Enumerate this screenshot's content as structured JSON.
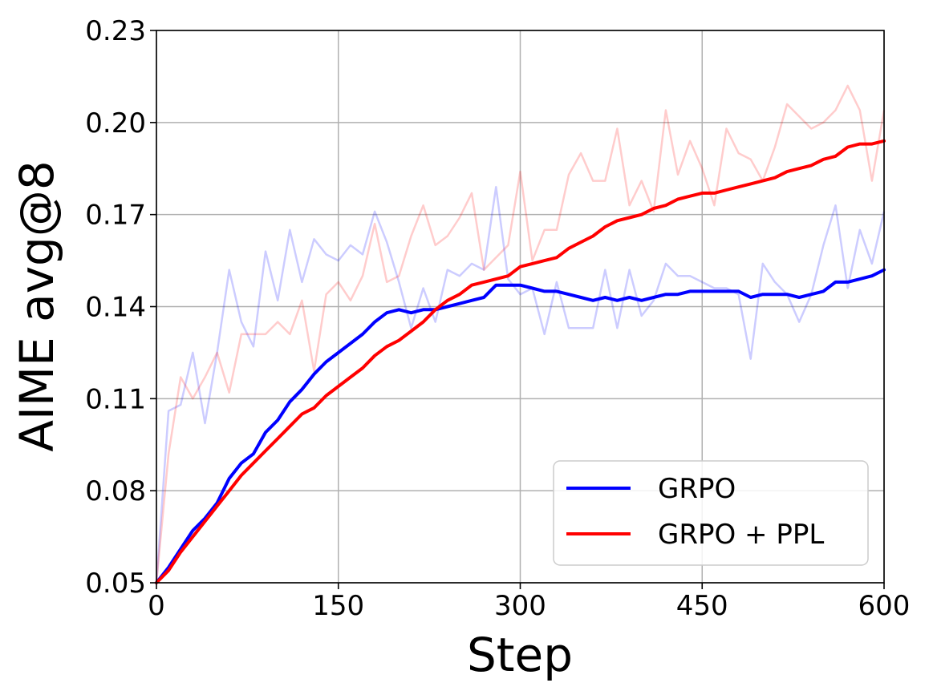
{
  "chart_data": {
    "type": "line",
    "xlabel": "Step",
    "ylabel": "AIME avg@8",
    "xlim": [
      0,
      600
    ],
    "ylim": [
      0.05,
      0.23
    ],
    "xticks": [
      0,
      150,
      300,
      450,
      600
    ],
    "xtick_labels": [
      "0",
      "150",
      "300",
      "450",
      "600"
    ],
    "yticks": [
      0.05,
      0.08,
      0.11,
      0.14,
      0.17,
      0.2,
      0.23
    ],
    "ytick_labels": [
      "0.05",
      "0.08",
      "0.11",
      "0.14",
      "0.17",
      "0.20",
      "0.23"
    ],
    "grid": true,
    "legend": "bottom-right",
    "x": [
      0,
      10,
      20,
      30,
      40,
      50,
      60,
      70,
      80,
      90,
      100,
      110,
      120,
      130,
      140,
      150,
      160,
      170,
      180,
      190,
      200,
      210,
      220,
      230,
      240,
      250,
      260,
      270,
      280,
      290,
      300,
      310,
      320,
      330,
      340,
      350,
      360,
      370,
      380,
      390,
      400,
      410,
      420,
      430,
      440,
      450,
      460,
      470,
      480,
      490,
      500,
      510,
      520,
      530,
      540,
      550,
      560,
      570,
      580,
      590,
      600
    ],
    "series": [
      {
        "name": "GRPO",
        "color": "#0000ff",
        "values": [
          0.05,
          0.055,
          0.061,
          0.067,
          0.071,
          0.076,
          0.084,
          0.089,
          0.092,
          0.099,
          0.103,
          0.109,
          0.113,
          0.118,
          0.122,
          0.125,
          0.128,
          0.131,
          0.135,
          0.138,
          0.139,
          0.138,
          0.139,
          0.139,
          0.14,
          0.141,
          0.142,
          0.143,
          0.147,
          0.147,
          0.147,
          0.146,
          0.145,
          0.145,
          0.144,
          0.143,
          0.142,
          0.143,
          0.142,
          0.143,
          0.142,
          0.143,
          0.144,
          0.144,
          0.145,
          0.145,
          0.145,
          0.145,
          0.145,
          0.143,
          0.144,
          0.144,
          0.144,
          0.143,
          0.144,
          0.145,
          0.148,
          0.148,
          0.149,
          0.15,
          0.152
        ]
      },
      {
        "name": "GRPO + PPL",
        "color": "#ff0000",
        "values": [
          0.05,
          0.054,
          0.06,
          0.065,
          0.07,
          0.075,
          0.08,
          0.085,
          0.089,
          0.093,
          0.097,
          0.101,
          0.105,
          0.107,
          0.111,
          0.114,
          0.117,
          0.12,
          0.124,
          0.127,
          0.129,
          0.132,
          0.135,
          0.139,
          0.142,
          0.144,
          0.147,
          0.148,
          0.149,
          0.15,
          0.153,
          0.154,
          0.155,
          0.156,
          0.159,
          0.161,
          0.163,
          0.166,
          0.168,
          0.169,
          0.17,
          0.172,
          0.173,
          0.175,
          0.176,
          0.177,
          0.177,
          0.178,
          0.179,
          0.18,
          0.181,
          0.182,
          0.184,
          0.185,
          0.186,
          0.188,
          0.189,
          0.192,
          0.193,
          0.193,
          0.194
        ]
      }
    ],
    "raw_series": [
      {
        "color": "#0000ff",
        "values": [
          0.05,
          0.106,
          0.108,
          0.125,
          0.102,
          0.125,
          0.152,
          0.135,
          0.127,
          0.158,
          0.142,
          0.165,
          0.148,
          0.162,
          0.157,
          0.155,
          0.16,
          0.157,
          0.171,
          0.161,
          0.148,
          0.133,
          0.146,
          0.135,
          0.152,
          0.15,
          0.154,
          0.152,
          0.179,
          0.149,
          0.144,
          0.146,
          0.131,
          0.148,
          0.133,
          0.133,
          0.133,
          0.152,
          0.133,
          0.152,
          0.137,
          0.142,
          0.154,
          0.15,
          0.15,
          0.148,
          0.146,
          0.146,
          0.144,
          0.123,
          0.154,
          0.148,
          0.144,
          0.135,
          0.144,
          0.16,
          0.173,
          0.146,
          0.165,
          0.154,
          0.171
        ]
      },
      {
        "color": "#ff0000",
        "values": [
          0.05,
          0.092,
          0.117,
          0.11,
          0.117,
          0.125,
          0.112,
          0.131,
          0.131,
          0.131,
          0.135,
          0.131,
          0.142,
          0.119,
          0.144,
          0.148,
          0.142,
          0.15,
          0.167,
          0.148,
          0.15,
          0.163,
          0.173,
          0.16,
          0.163,
          0.169,
          0.177,
          0.152,
          0.156,
          0.16,
          0.184,
          0.155,
          0.165,
          0.165,
          0.183,
          0.19,
          0.181,
          0.181,
          0.198,
          0.173,
          0.181,
          0.171,
          0.204,
          0.183,
          0.194,
          0.185,
          0.173,
          0.198,
          0.19,
          0.188,
          0.181,
          0.192,
          0.206,
          0.202,
          0.198,
          0.2,
          0.204,
          0.212,
          0.204,
          0.181,
          0.204
        ]
      }
    ]
  }
}
